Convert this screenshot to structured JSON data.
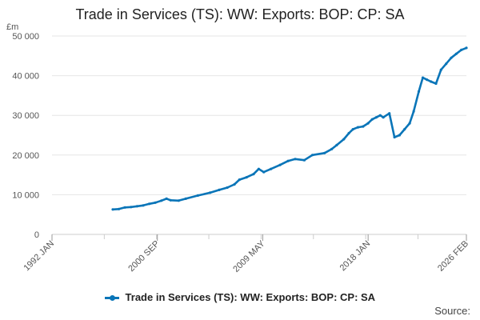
{
  "colors": {
    "series": "#0a75b8",
    "grid": "#e6e6e6",
    "axis": "#cccccc"
  },
  "chart_data": {
    "type": "line",
    "title": "Trade in Services (TS): WW: Exports: BOP: CP: SA",
    "ylabel": "£m",
    "xlabel": "",
    "ylim": [
      0,
      50000
    ],
    "xlim": [
      "1992-01",
      "2026-02"
    ],
    "yticks": [
      0,
      10000,
      20000,
      30000,
      40000,
      50000
    ],
    "ytick_labels": [
      "0",
      "10 000",
      "20 000",
      "30 000",
      "40 000",
      "50 000"
    ],
    "xticks": [
      "1992-01",
      "2000-09",
      "2009-05",
      "2018-01",
      "2026-02"
    ],
    "xtick_labels": [
      "1992 JAN",
      "2000 SEP",
      "2009 MAY",
      "2018 JAN",
      "2026 FEB"
    ],
    "grid": true,
    "legend": "bottom",
    "series": [
      {
        "name": "Trade in Services (TS): WW: Exports: BOP: CP: SA",
        "points": [
          [
            "1997-01",
            6300
          ],
          [
            "1997-07",
            6400
          ],
          [
            "1998-01",
            6800
          ],
          [
            "1998-07",
            6900
          ],
          [
            "1999-01",
            7100
          ],
          [
            "1999-07",
            7300
          ],
          [
            "2000-01",
            7700
          ],
          [
            "2000-07",
            8000
          ],
          [
            "2001-01",
            8500
          ],
          [
            "2001-06",
            9000
          ],
          [
            "2001-10",
            8600
          ],
          [
            "2002-06",
            8500
          ],
          [
            "2003-01",
            9000
          ],
          [
            "2004-01",
            9800
          ],
          [
            "2005-01",
            10500
          ],
          [
            "2005-10",
            11200
          ],
          [
            "2006-06",
            11800
          ],
          [
            "2007-01",
            12600
          ],
          [
            "2007-06",
            13800
          ],
          [
            "2008-01",
            14400
          ],
          [
            "2008-08",
            15200
          ],
          [
            "2009-01",
            16500
          ],
          [
            "2009-06",
            15700
          ],
          [
            "2010-01",
            16500
          ],
          [
            "2010-10",
            17500
          ],
          [
            "2011-06",
            18500
          ],
          [
            "2012-01",
            19000
          ],
          [
            "2012-10",
            18700
          ],
          [
            "2013-06",
            20000
          ],
          [
            "2014-06",
            20500
          ],
          [
            "2015-01",
            21500
          ],
          [
            "2015-06",
            22500
          ],
          [
            "2016-01",
            24000
          ],
          [
            "2016-06",
            25500
          ],
          [
            "2016-10",
            26500
          ],
          [
            "2017-03",
            27000
          ],
          [
            "2017-08",
            27200
          ],
          [
            "2018-01",
            28000
          ],
          [
            "2018-05",
            29000
          ],
          [
            "2018-09",
            29500
          ],
          [
            "2019-01",
            30000
          ],
          [
            "2019-04",
            29500
          ],
          [
            "2019-10",
            30500
          ],
          [
            "2020-03",
            24500
          ],
          [
            "2020-08",
            25000
          ],
          [
            "2021-01",
            26500
          ],
          [
            "2021-06",
            28000
          ],
          [
            "2021-10",
            31000
          ],
          [
            "2022-03",
            36000
          ],
          [
            "2022-07",
            39500
          ],
          [
            "2022-11",
            39000
          ],
          [
            "2023-03",
            38500
          ],
          [
            "2023-08",
            38000
          ],
          [
            "2024-01",
            41500
          ],
          [
            "2024-06",
            43000
          ],
          [
            "2024-11",
            44500
          ],
          [
            "2025-04",
            45500
          ],
          [
            "2025-09",
            46500
          ],
          [
            "2026-02",
            47000
          ]
        ]
      }
    ],
    "source": "Source:"
  }
}
